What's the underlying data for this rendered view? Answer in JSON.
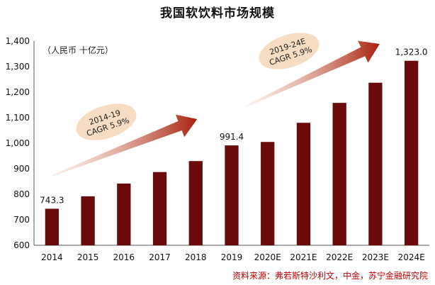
{
  "chart_data": {
    "type": "bar",
    "title": "我国软饮料市场规模",
    "unit_label": "（人民币 十亿元）",
    "categories": [
      "2014",
      "2015",
      "2016",
      "2017",
      "2018",
      "2019",
      "2020E",
      "2021E",
      "2022E",
      "2023E",
      "2024E"
    ],
    "values": [
      743.3,
      792,
      842,
      887,
      930,
      991.4,
      1005,
      1080,
      1158,
      1237,
      1323.0
    ],
    "data_labels": [
      {
        "index": 0,
        "text": "743.3"
      },
      {
        "index": 5,
        "text": "991.4"
      },
      {
        "index": 10,
        "text": "1,323.0"
      }
    ],
    "ylim": [
      600,
      1400
    ],
    "yticks": [
      "600",
      "700",
      "800",
      "900",
      "1,000",
      "1,100",
      "1,200",
      "1,300",
      "1,400"
    ],
    "ytick_values": [
      600,
      700,
      800,
      900,
      1000,
      1100,
      1200,
      1300,
      1400
    ],
    "bar_color": "#6b0a0a",
    "annotations": [
      {
        "from": "2014",
        "to": "2018",
        "lines": [
          "2014-19",
          "CAGR 5.9%"
        ]
      },
      {
        "from": "2019",
        "to": "2023E",
        "lines": [
          "2019-24E",
          "CAGR 5.9%"
        ]
      }
    ],
    "grid": false
  },
  "source": "资料来源：弗若斯特沙利文，中金，苏宁金融研究院",
  "colors": {
    "arrow": "#a8200d",
    "bubble": "#f5dcc2",
    "source": "#c00000"
  }
}
